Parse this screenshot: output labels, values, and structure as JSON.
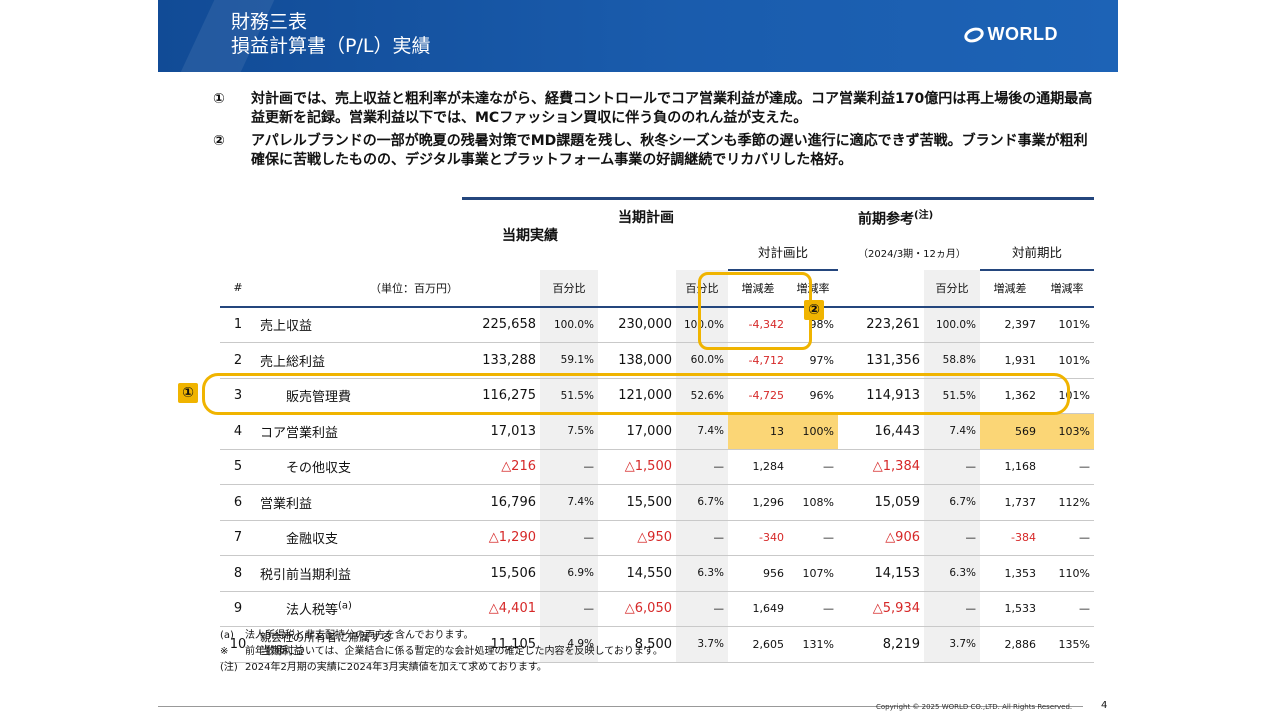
{
  "header": {
    "title_line1": "財務三表",
    "title_line2": "損益計算書（P/L）実績",
    "logo_text": "WORLD",
    "bg_color": "#1a5cad"
  },
  "bullets": [
    {
      "marker": "①",
      "text": "対計画では、売上収益と粗利率が未達ながら、経費コントロールでコア営業利益が達成。コア営業利益170億円は再上場後の通期最高益更新を記録。営業利益以下では、MCファッション買収に伴う負ののれん益が支えた。"
    },
    {
      "marker": "②",
      "text": "アパレルブランドの一部が晩夏の残暑対策でMD課題を残し、秋冬シーズンも季節の遅い進行に適応できず苦戦。ブランド事業が粗利確保に苦戦したものの、デジタル事業とプラットフォーム事業の好調継続でリカバリした格好。"
    }
  ],
  "table": {
    "group_headers": {
      "actual": "当期実績",
      "plan": "当期計画",
      "vs_plan": "対計画比",
      "prev": "前期参考",
      "prev_note": "(注)",
      "prev_period": "（2024/3期・12ヵ月）",
      "vs_prev": "対前期比"
    },
    "col_headers": {
      "num": "#",
      "unit": "（単位：百万円）",
      "pct": "百分比",
      "diff": "増減差",
      "rate": "増減率"
    },
    "rows": [
      {
        "no": "1",
        "name": "売上収益",
        "actual": "225,658",
        "a_pct": "100.0%",
        "plan": "230,000",
        "p_pct": "100.0%",
        "diff": "-4,342",
        "rate": "98%",
        "prev": "223,261",
        "pv_pct": "100.0%",
        "diff2": "2,397",
        "rate2": "101%"
      },
      {
        "no": "2",
        "name": "売上総利益",
        "actual": "133,288",
        "a_pct": "59.1%",
        "plan": "138,000",
        "p_pct": "60.0%",
        "diff": "-4,712",
        "rate": "97%",
        "prev": "131,356",
        "pv_pct": "58.8%",
        "diff2": "1,931",
        "rate2": "101%"
      },
      {
        "no": "3",
        "name": "販売管理費",
        "actual": "116,275",
        "a_pct": "51.5%",
        "plan": "121,000",
        "p_pct": "52.6%",
        "diff": "-4,725",
        "rate": "96%",
        "prev": "114,913",
        "pv_pct": "51.5%",
        "diff2": "1,362",
        "rate2": "101%"
      },
      {
        "no": "4",
        "name": "コア営業利益",
        "actual": "17,013",
        "a_pct": "7.5%",
        "plan": "17,000",
        "p_pct": "7.4%",
        "diff": "13",
        "rate": "100%",
        "prev": "16,443",
        "pv_pct": "7.4%",
        "diff2": "569",
        "rate2": "103%"
      },
      {
        "no": "5",
        "name": "その他収支",
        "actual": "△216",
        "a_pct": "—",
        "plan": "△1,500",
        "p_pct": "—",
        "diff": "1,284",
        "rate": "—",
        "prev": "△1,384",
        "pv_pct": "—",
        "diff2": "1,168",
        "rate2": "—"
      },
      {
        "no": "6",
        "name": "営業利益",
        "actual": "16,796",
        "a_pct": "7.4%",
        "plan": "15,500",
        "p_pct": "6.7%",
        "diff": "1,296",
        "rate": "108%",
        "prev": "15,059",
        "pv_pct": "6.7%",
        "diff2": "1,737",
        "rate2": "112%"
      },
      {
        "no": "7",
        "name": "金融収支",
        "actual": "△1,290",
        "a_pct": "—",
        "plan": "△950",
        "p_pct": "—",
        "diff": "-340",
        "rate": "—",
        "prev": "△906",
        "pv_pct": "—",
        "diff2": "-384",
        "rate2": "—"
      },
      {
        "no": "8",
        "name": "税引前当期利益",
        "actual": "15,506",
        "a_pct": "6.9%",
        "plan": "14,550",
        "p_pct": "6.3%",
        "diff": "956",
        "rate": "107%",
        "prev": "14,153",
        "pv_pct": "6.3%",
        "diff2": "1,353",
        "rate2": "110%"
      },
      {
        "no": "9",
        "name": "法人税等",
        "name_note": "(a)",
        "actual": "△4,401",
        "a_pct": "—",
        "plan": "△6,050",
        "p_pct": "—",
        "diff": "1,649",
        "rate": "—",
        "prev": "△5,934",
        "pv_pct": "—",
        "diff2": "1,533",
        "rate2": "—"
      },
      {
        "no": "10",
        "name": "親会社の所有者に帰属する",
        "name2": "当期利益",
        "actual": "11,105",
        "a_pct": "4.9%",
        "plan": "8,500",
        "p_pct": "3.7%",
        "diff": "2,605",
        "rate": "131%",
        "prev": "8,219",
        "pv_pct": "3.7%",
        "diff2": "2,886",
        "rate2": "135%"
      }
    ]
  },
  "callouts": {
    "one": "①",
    "two": "②"
  },
  "notes": [
    {
      "mark": "(a)",
      "text": "法人所得税と非支配持分の両方を含んでおります。"
    },
    {
      "mark": "※",
      "text": "前年数値については、企業結合に係る暫定的な会計処理の確定した内容を反映しております。"
    },
    {
      "mark": "(注)",
      "text": "2024年2月期の実績に2024年3月実績値を加えて求めております。"
    }
  ],
  "footer": {
    "copyright": "Copyright © 2025 WORLD CO.,LTD. All Rights Reserved.",
    "page": "4"
  },
  "colors": {
    "header_blue": "#1a5cad",
    "highlight": "#fbd676",
    "ring": "#f0b400",
    "negative": "#d62828"
  }
}
